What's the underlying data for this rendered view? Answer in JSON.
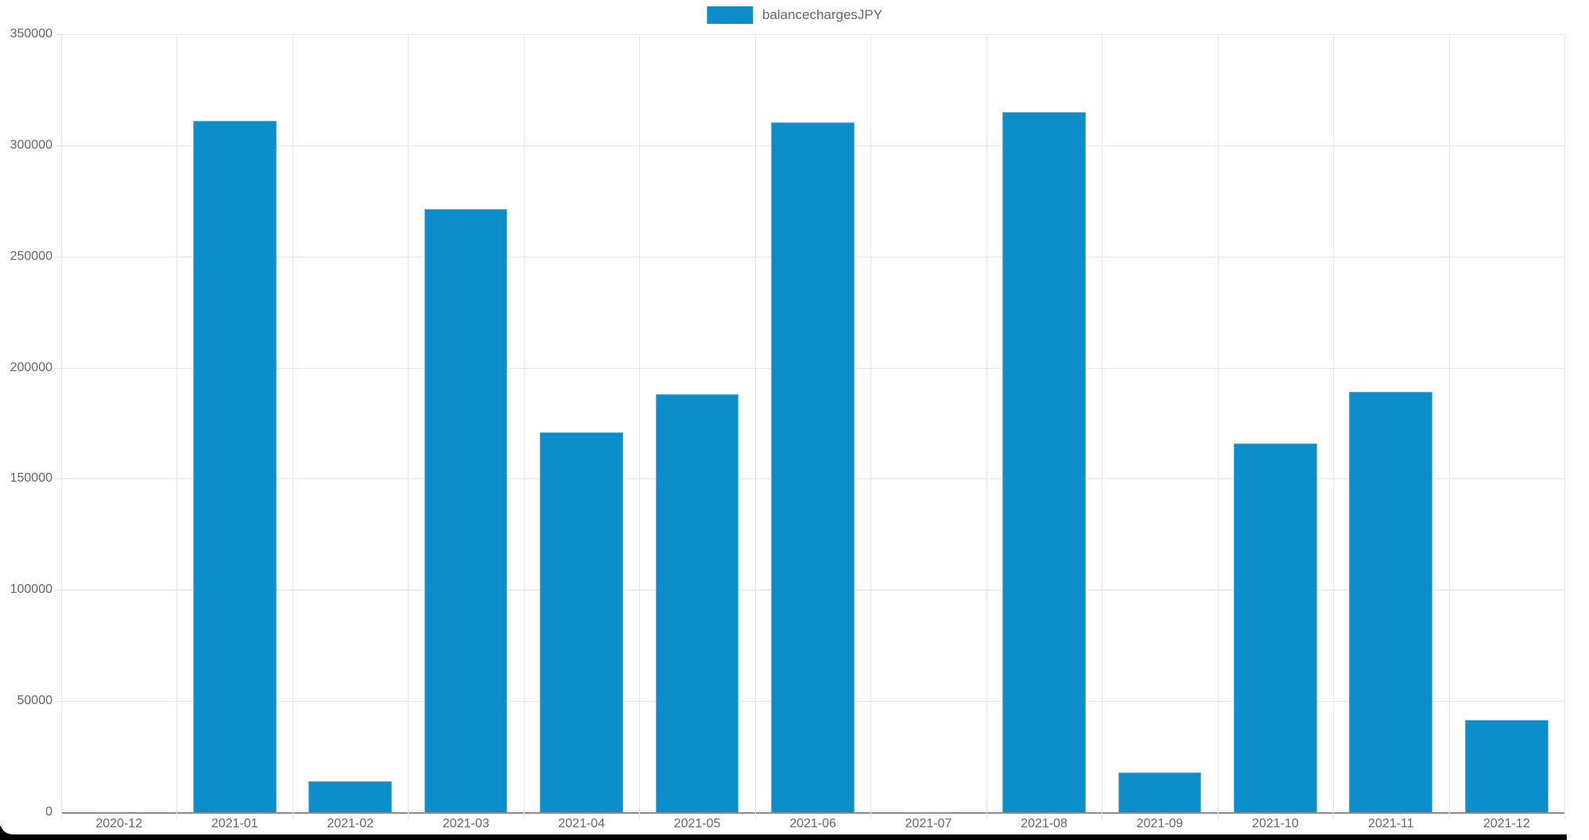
{
  "page": {
    "background_color": "#ffffff",
    "bottom_bar_color": "#000000"
  },
  "legend": {
    "label": "balancechargesJPY",
    "swatch_color": "#0d8eca"
  },
  "chart_data": {
    "type": "bar",
    "title": "",
    "xlabel": "",
    "ylabel": "",
    "legend_position": "top",
    "grid": true,
    "series_name": "balancechargesJPY",
    "categories": [
      "2020-12",
      "2021-01",
      "2021-02",
      "2021-03",
      "2021-04",
      "2021-05",
      "2021-06",
      "2021-07",
      "2021-08",
      "2021-09",
      "2021-10",
      "2021-11",
      "2021-12"
    ],
    "values": [
      0,
      311000,
      14000,
      271500,
      171000,
      188000,
      310500,
      0,
      315000,
      18000,
      166000,
      189000,
      41500
    ],
    "ylim": [
      0,
      350000
    ],
    "y_ticks": [
      0,
      50000,
      100000,
      150000,
      200000,
      250000,
      300000,
      350000
    ],
    "y_tick_labels": [
      "0",
      "50000",
      "100000",
      "150000",
      "200000",
      "250000",
      "300000",
      "350000"
    ],
    "bar_color": "#0d8eca",
    "bar_border_color": "#5fb4df",
    "grid_color": "#e7e7e7",
    "axis_line_color": "#8c8c8c",
    "tick_text_color": "#666666"
  }
}
